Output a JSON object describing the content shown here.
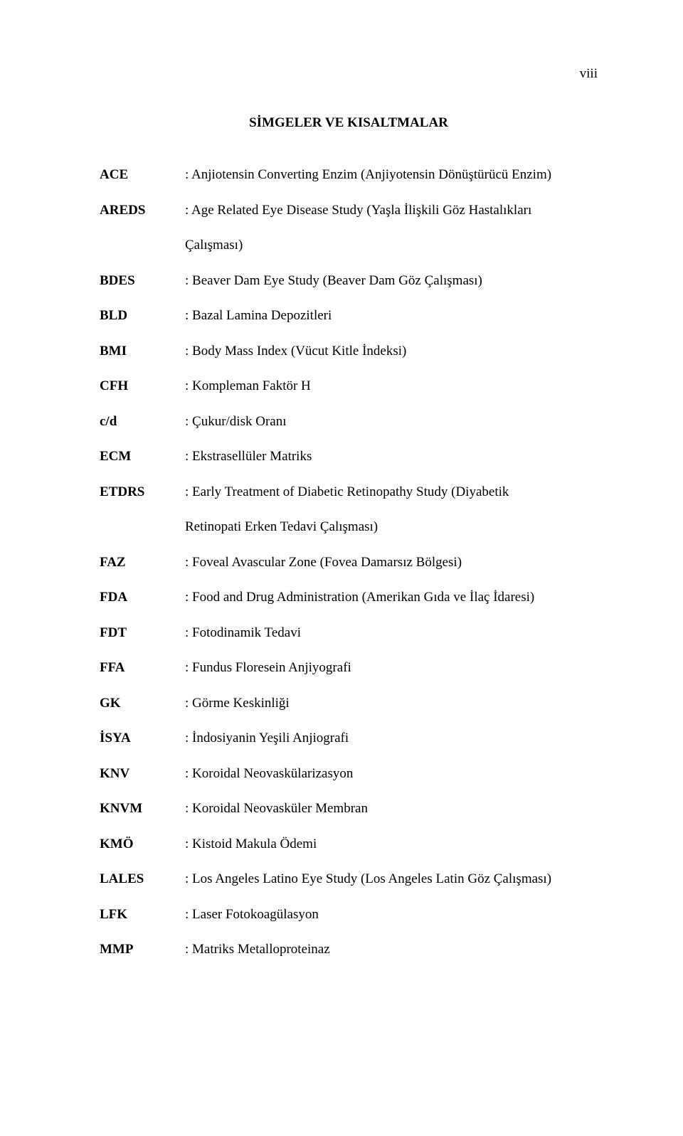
{
  "page_number": "viii",
  "title": "SİMGELER VE KISALTMALAR",
  "entries": [
    {
      "term": "ACE",
      "def": ": Anjiotensin Converting Enzim (Anjiyotensin Dönüştürücü Enzim)"
    },
    {
      "term": "AREDS",
      "def": ": Age Related Eye Disease Study (Yaşla İlişkili Göz Hastalıkları",
      "cont": "Çalışması)"
    },
    {
      "term": "BDES",
      "def": ": Beaver Dam Eye Study (Beaver Dam Göz Çalışması)"
    },
    {
      "term": "BLD",
      "def": ": Bazal Lamina Depozitleri"
    },
    {
      "term": "BMI",
      "def": ": Body Mass Index (Vücut Kitle İndeksi)"
    },
    {
      "term": "CFH",
      "def": ": Kompleman Faktör H"
    },
    {
      "term": "c/d",
      "def": ": Çukur/disk Oranı"
    },
    {
      "term": "ECM",
      "def": ": Ekstrasellüler Matriks"
    },
    {
      "term": "ETDRS",
      "def": ": Early Treatment of Diabetic Retinopathy Study (Diyabetik",
      "cont": "Retinopati Erken Tedavi Çalışması)"
    },
    {
      "term": " FAZ",
      "def": ": Foveal Avascular Zone (Fovea Damarsız Bölgesi)"
    },
    {
      "term": "FDA",
      "def": ": Food and Drug Administration (Amerikan Gıda ve İlaç İdaresi)"
    },
    {
      "term": "FDT",
      "def": ": Fotodinamik Tedavi"
    },
    {
      "term": "FFA",
      "def": ": Fundus Floresein Anjiyografi"
    },
    {
      "term": "GK",
      "def": ": Görme Keskinliği"
    },
    {
      "term": "İSYA",
      "def": ": İndosiyanin Yeşili Anjiografi"
    },
    {
      "term": "KNV",
      "def": ": Koroidal Neovaskülarizasyon"
    },
    {
      "term": "KNVM",
      "def": ": Koroidal Neovasküler Membran"
    },
    {
      "term": "KMÖ",
      "def": ": Kistoid Makula Ödemi"
    },
    {
      "term": "LALES",
      "def": ": Los Angeles Latino Eye Study (Los Angeles Latin Göz Çalışması)"
    },
    {
      "term": "LFK",
      "def": ": Laser Fotokoagülasyon"
    },
    {
      "term": "MMP",
      "def": ": Matriks Metalloproteinaz"
    }
  ]
}
